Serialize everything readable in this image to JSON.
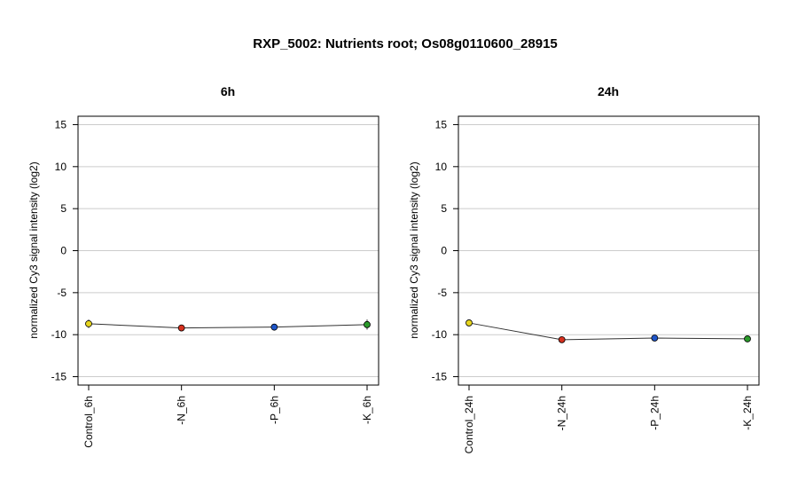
{
  "figure": {
    "title": "RXP_5002: Nutrients root; Os08g0110600_28915"
  },
  "chart_data": [
    {
      "type": "line",
      "title": "6h",
      "xlabel": "",
      "ylabel": "normalized Cy3 signal intensity (log2)",
      "categories": [
        "Control_6h",
        "-N_6h",
        "-P_6h",
        "-K_6h"
      ],
      "values": [
        -8.7,
        -9.2,
        -9.1,
        -8.8
      ],
      "errors": [
        0.5,
        0.2,
        0.3,
        0.6
      ],
      "colors": [
        "#e6d51e",
        "#d6301e",
        "#1e55c8",
        "#2a9a2a"
      ],
      "ylim": [
        -16,
        16
      ],
      "yticks": [
        15,
        10,
        5,
        0,
        -5,
        -10,
        -15
      ],
      "ytick_labels": [
        "15",
        "10",
        "5",
        "0",
        "-5",
        "-10",
        "-15"
      ],
      "grid": true,
      "line_color": "#333333"
    },
    {
      "type": "line",
      "title": "24h",
      "xlabel": "",
      "ylabel": "normalized Cy3 signal intensity (log2)",
      "categories": [
        "Control_24h",
        "-N_24h",
        "-P_24h",
        "-K_24h"
      ],
      "values": [
        -8.6,
        -10.6,
        -10.4,
        -10.5
      ],
      "errors": [
        0.3,
        0.15,
        0.2,
        0.15
      ],
      "colors": [
        "#e6d51e",
        "#d6301e",
        "#1e55c8",
        "#2a9a2a"
      ],
      "ylim": [
        -16,
        16
      ],
      "yticks": [
        15,
        10,
        5,
        0,
        -5,
        -10,
        -15
      ],
      "ytick_labels": [
        "15",
        "10",
        "5",
        "0",
        "-5",
        "-10",
        "-15"
      ],
      "grid": true,
      "line_color": "#333333"
    }
  ]
}
